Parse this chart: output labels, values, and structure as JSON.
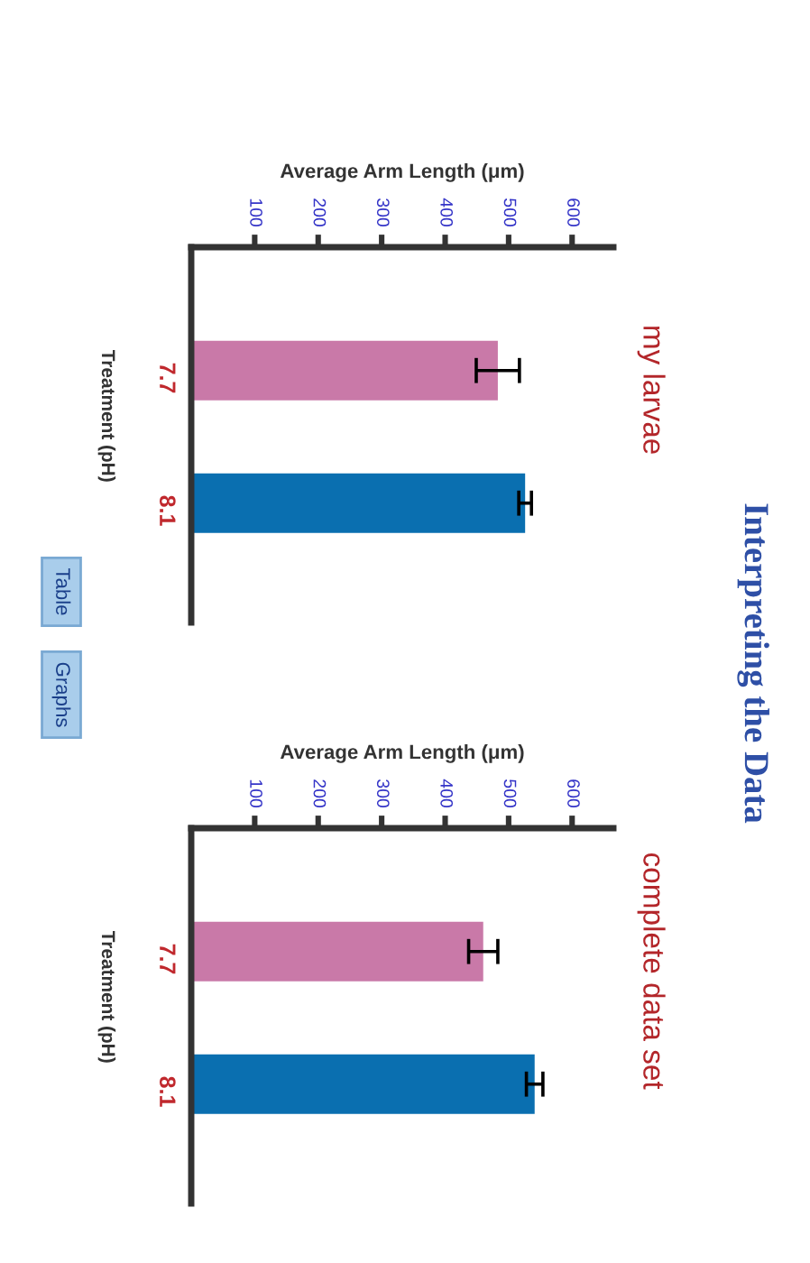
{
  "chart_data": [
    {
      "type": "bar",
      "orientation": "horizontal",
      "xlabel": "Average Arm Length (μm)",
      "ylabel": "Treatment (pH)",
      "categories": [
        "7.7",
        "8.1"
      ],
      "values": [
        483,
        526
      ],
      "errors": [
        34,
        10
      ],
      "colors": [
        "#c979a8",
        "#0a6fb0"
      ],
      "xlim": [
        0,
        665
      ],
      "xticks": [
        100,
        200,
        300,
        400,
        500,
        600
      ],
      "annotations": [
        "my larvae",
        "Interpreting the Data",
        "Table",
        "Graphs"
      ]
    },
    {
      "type": "bar",
      "orientation": "horizontal",
      "xlabel": "Average Arm Length (μm)",
      "ylabel": "Treatment (pH)",
      "categories": [
        "7.7",
        "8.1"
      ],
      "values": [
        460,
        541
      ],
      "errors": [
        23,
        13
      ],
      "colors": [
        "#c979a8",
        "#0a6fb0"
      ],
      "xlim": [
        0,
        665
      ],
      "xticks": [
        100,
        200,
        300,
        400,
        500,
        600
      ],
      "annotations": [
        "complete data set"
      ]
    }
  ]
}
